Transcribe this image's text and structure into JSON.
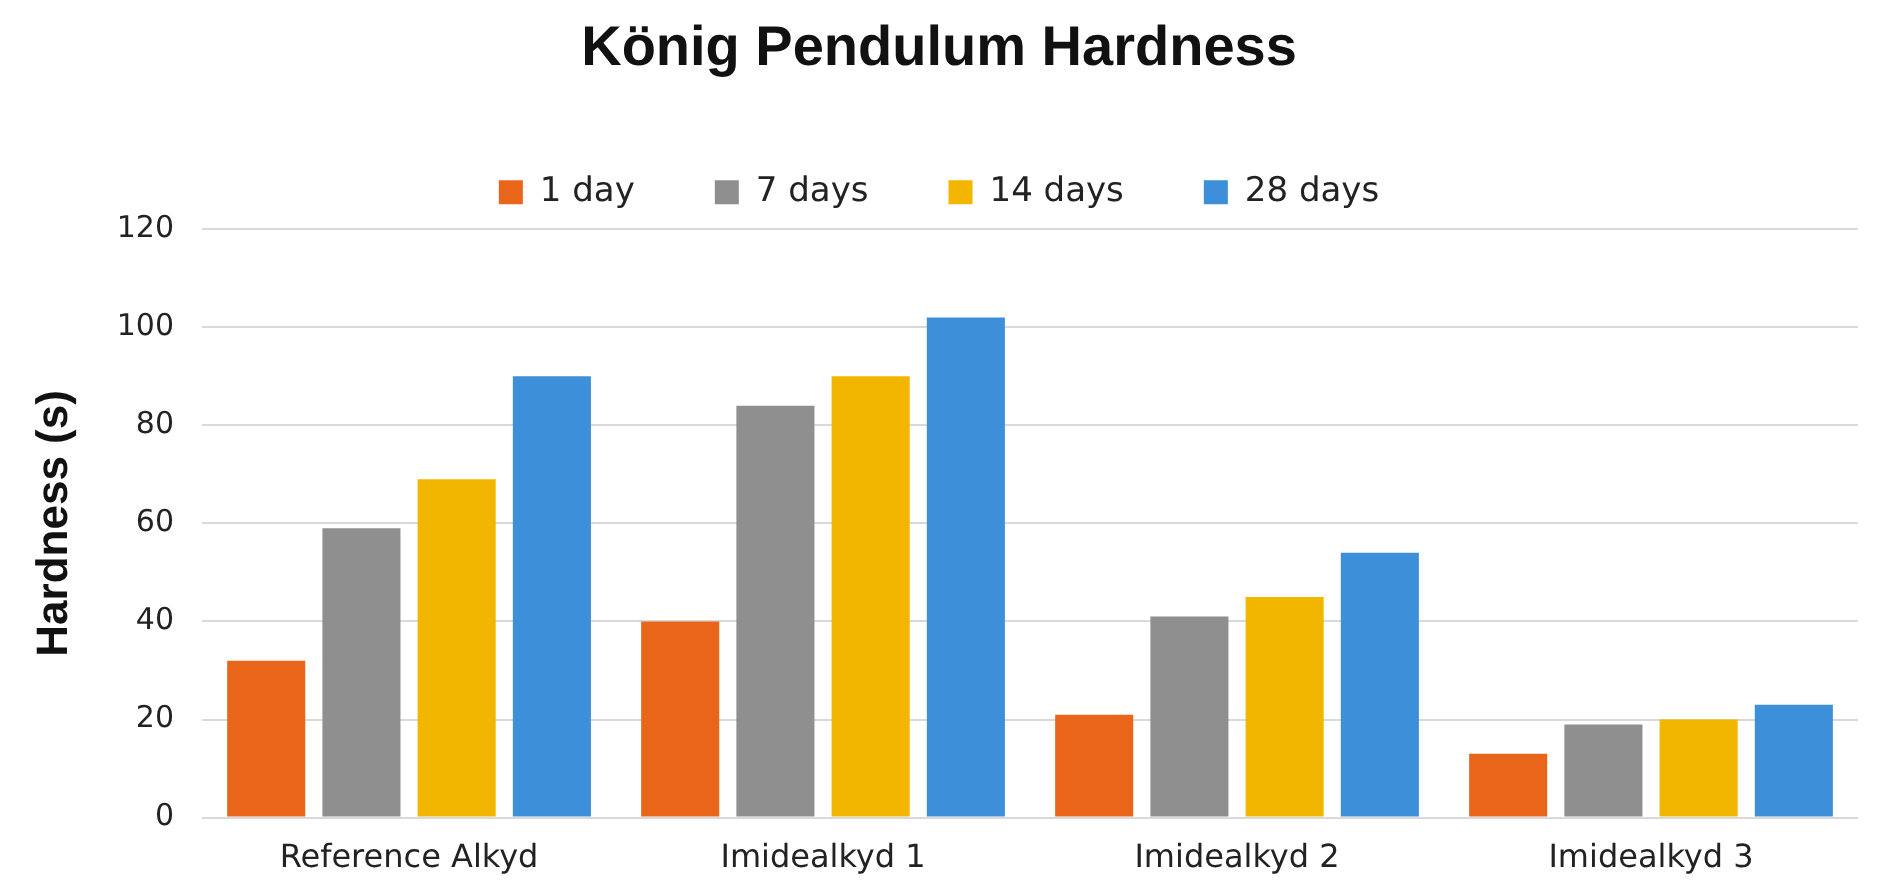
{
  "chart_data": {
    "type": "bar",
    "title": "König Pendulum Hardness",
    "ylabel": "Hardness (s)",
    "categories": [
      "Reference Alkyd",
      "Imidealkyd 1",
      "Imidealkyd 2",
      "Imidealkyd 3"
    ],
    "series": [
      {
        "name": "1 day",
        "color": "#e8651a",
        "values": [
          32,
          40,
          21,
          13
        ]
      },
      {
        "name": "7 days",
        "color": "#8f8f8f",
        "values": [
          59,
          84,
          41,
          19
        ]
      },
      {
        "name": "14 days",
        "color": "#f2b600",
        "values": [
          69,
          90,
          45,
          20
        ]
      },
      {
        "name": "28 days",
        "color": "#3d8fd9",
        "values": [
          90,
          102,
          54,
          23
        ]
      }
    ],
    "ylim": [
      0,
      120
    ],
    "yticks": [
      0,
      20,
      40,
      60,
      80,
      100,
      120
    ],
    "grid": "y",
    "legend": "top"
  }
}
